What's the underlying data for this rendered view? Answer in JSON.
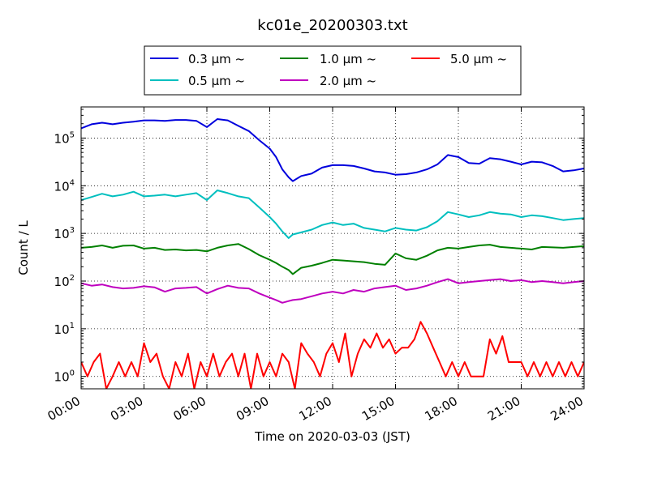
{
  "chart_data": {
    "type": "line",
    "title": "kc01e_20200303.txt",
    "xlabel": "Time on 2020-03-03 (JST)",
    "ylabel": "Count / L",
    "xlim_hours": [
      0,
      24
    ],
    "x_tick_labels": [
      "00:00",
      "03:00",
      "06:00",
      "09:00",
      "12:00",
      "15:00",
      "18:00",
      "21:00",
      "24:00"
    ],
    "yscale": "log",
    "ylim": [
      0.55,
      450000
    ],
    "y_tick_exponents": [
      0,
      1,
      2,
      3,
      4,
      5
    ],
    "grid": true,
    "legend_placement": "top-center, outside plot",
    "series": [
      {
        "name": "0.3 μm  ~",
        "color": "#0000dd",
        "hours": [
          0,
          0.5,
          1,
          1.5,
          2,
          2.5,
          3,
          3.5,
          4,
          4.5,
          5,
          5.5,
          6,
          6.5,
          7,
          7.5,
          8,
          8.5,
          9,
          9.3,
          9.6,
          9.9,
          10.1,
          10.5,
          11,
          11.5,
          12,
          12.5,
          13,
          13.5,
          14,
          14.5,
          15,
          15.5,
          16,
          16.5,
          17,
          17.5,
          18,
          18.5,
          19,
          19.5,
          20,
          20.5,
          21,
          21.5,
          22,
          22.5,
          23,
          23.5,
          24
        ],
        "values": [
          160000,
          195000,
          210000,
          195000,
          210000,
          220000,
          235000,
          235000,
          230000,
          240000,
          240000,
          230000,
          170000,
          250000,
          235000,
          180000,
          140000,
          90000,
          60000,
          40000,
          22000,
          15000,
          12500,
          16000,
          18000,
          24000,
          27000,
          27000,
          26000,
          23000,
          20000,
          19000,
          17000,
          17500,
          19000,
          22000,
          28000,
          44000,
          40000,
          30000,
          29000,
          38000,
          36000,
          32000,
          28000,
          32000,
          31000,
          26000,
          20000,
          21000,
          23000
        ]
      },
      {
        "name": "0.5 μm  ~",
        "color": "#00bfbf",
        "hours": [
          0,
          0.5,
          1,
          1.5,
          2,
          2.5,
          3,
          3.5,
          4,
          4.5,
          5,
          5.5,
          6,
          6.5,
          7,
          7.5,
          8,
          8.5,
          9,
          9.3,
          9.6,
          9.9,
          10.1,
          10.5,
          11,
          11.5,
          12,
          12.5,
          13,
          13.5,
          14,
          14.5,
          15,
          15.5,
          16,
          16.5,
          17,
          17.5,
          18,
          18.5,
          19,
          19.5,
          20,
          20.5,
          21,
          21.5,
          22,
          22.5,
          23,
          23.5,
          24
        ],
        "values": [
          5000,
          5800,
          6800,
          6000,
          6500,
          7500,
          6000,
          6200,
          6500,
          6000,
          6500,
          7000,
          5000,
          8000,
          7000,
          6000,
          5500,
          3500,
          2200,
          1600,
          1100,
          800,
          950,
          1050,
          1200,
          1500,
          1700,
          1500,
          1600,
          1300,
          1200,
          1100,
          1300,
          1200,
          1150,
          1350,
          1800,
          2800,
          2500,
          2200,
          2400,
          2800,
          2600,
          2500,
          2200,
          2400,
          2300,
          2100,
          1900,
          2000,
          2100
        ]
      },
      {
        "name": "1.0 μm  ~",
        "color": "#008000",
        "hours": [
          0,
          0.5,
          1,
          1.5,
          2,
          2.5,
          3,
          3.5,
          4,
          4.5,
          5,
          5.5,
          6,
          6.5,
          7,
          7.5,
          8,
          8.5,
          9,
          9.3,
          9.6,
          9.9,
          10.1,
          10.5,
          11,
          11.5,
          12,
          12.5,
          13,
          13.5,
          14,
          14.5,
          15,
          15.5,
          16,
          16.5,
          17,
          17.5,
          18,
          18.5,
          19,
          19.5,
          20,
          20.5,
          21,
          21.5,
          22,
          22.5,
          23,
          23.5,
          24
        ],
        "values": [
          500,
          520,
          560,
          500,
          550,
          560,
          480,
          500,
          450,
          460,
          440,
          450,
          420,
          500,
          560,
          600,
          470,
          350,
          280,
          240,
          200,
          170,
          140,
          190,
          210,
          240,
          280,
          270,
          260,
          250,
          230,
          220,
          380,
          300,
          280,
          340,
          440,
          500,
          480,
          520,
          560,
          580,
          520,
          500,
          480,
          460,
          520,
          510,
          500,
          520,
          540
        ]
      },
      {
        "name": "2.0 μm  ~",
        "color": "#bf00bf",
        "hours": [
          0,
          0.5,
          1,
          1.5,
          2,
          2.5,
          3,
          3.5,
          4,
          4.5,
          5,
          5.5,
          6,
          6.5,
          7,
          7.5,
          8,
          8.5,
          9,
          9.3,
          9.6,
          9.9,
          10.1,
          10.5,
          11,
          11.5,
          12,
          12.5,
          13,
          13.5,
          14,
          14.5,
          15,
          15.5,
          16,
          16.5,
          17,
          17.5,
          18,
          18.5,
          19,
          19.5,
          20,
          20.5,
          21,
          21.5,
          22,
          22.5,
          23,
          23.5,
          24
        ],
        "values": [
          90,
          80,
          85,
          75,
          70,
          72,
          78,
          74,
          60,
          70,
          72,
          75,
          55,
          68,
          80,
          72,
          70,
          55,
          45,
          40,
          35,
          38,
          40,
          42,
          48,
          55,
          60,
          55,
          65,
          60,
          70,
          75,
          80,
          65,
          70,
          80,
          95,
          110,
          90,
          95,
          100,
          105,
          110,
          100,
          105,
          95,
          100,
          95,
          90,
          95,
          100
        ]
      },
      {
        "name": "5.0 μm  ~",
        "color": "#ff0000",
        "hours": [
          0,
          0.3,
          0.6,
          0.9,
          1.2,
          1.5,
          1.8,
          2.1,
          2.4,
          2.7,
          3.0,
          3.3,
          3.6,
          3.9,
          4.2,
          4.5,
          4.8,
          5.1,
          5.4,
          5.7,
          6.0,
          6.3,
          6.6,
          6.9,
          7.2,
          7.5,
          7.8,
          8.1,
          8.4,
          8.7,
          9.0,
          9.3,
          9.6,
          9.9,
          10.2,
          10.5,
          10.8,
          11.1,
          11.4,
          11.7,
          12.0,
          12.3,
          12.6,
          12.9,
          13.2,
          13.5,
          13.8,
          14.1,
          14.4,
          14.7,
          15.0,
          15.3,
          15.6,
          15.9,
          16.2,
          16.5,
          16.8,
          17.1,
          17.4,
          17.7,
          18.0,
          18.3,
          18.6,
          18.9,
          19.2,
          19.5,
          19.8,
          20.1,
          20.4,
          20.7,
          21.0,
          21.3,
          21.6,
          21.9,
          22.2,
          22.5,
          22.8,
          23.1,
          23.4,
          23.7,
          24.0
        ],
        "values": [
          2,
          1,
          2,
          3,
          0.5,
          1,
          2,
          1,
          2,
          1,
          5,
          2,
          3,
          1,
          0.5,
          2,
          1,
          3,
          0.5,
          2,
          1,
          3,
          1,
          2,
          3,
          1,
          3,
          0.5,
          3,
          1,
          2,
          1,
          3,
          2,
          0.5,
          5,
          3,
          2,
          1,
          3,
          5,
          2,
          8,
          1,
          3,
          6,
          4,
          8,
          4,
          6,
          3,
          4,
          4,
          6,
          14,
          8,
          4,
          2,
          1,
          2,
          1,
          2,
          1,
          1,
          1,
          6,
          3,
          7,
          2,
          2,
          2,
          1,
          2,
          1,
          2,
          1,
          2,
          1,
          2,
          1,
          2
        ]
      }
    ]
  }
}
